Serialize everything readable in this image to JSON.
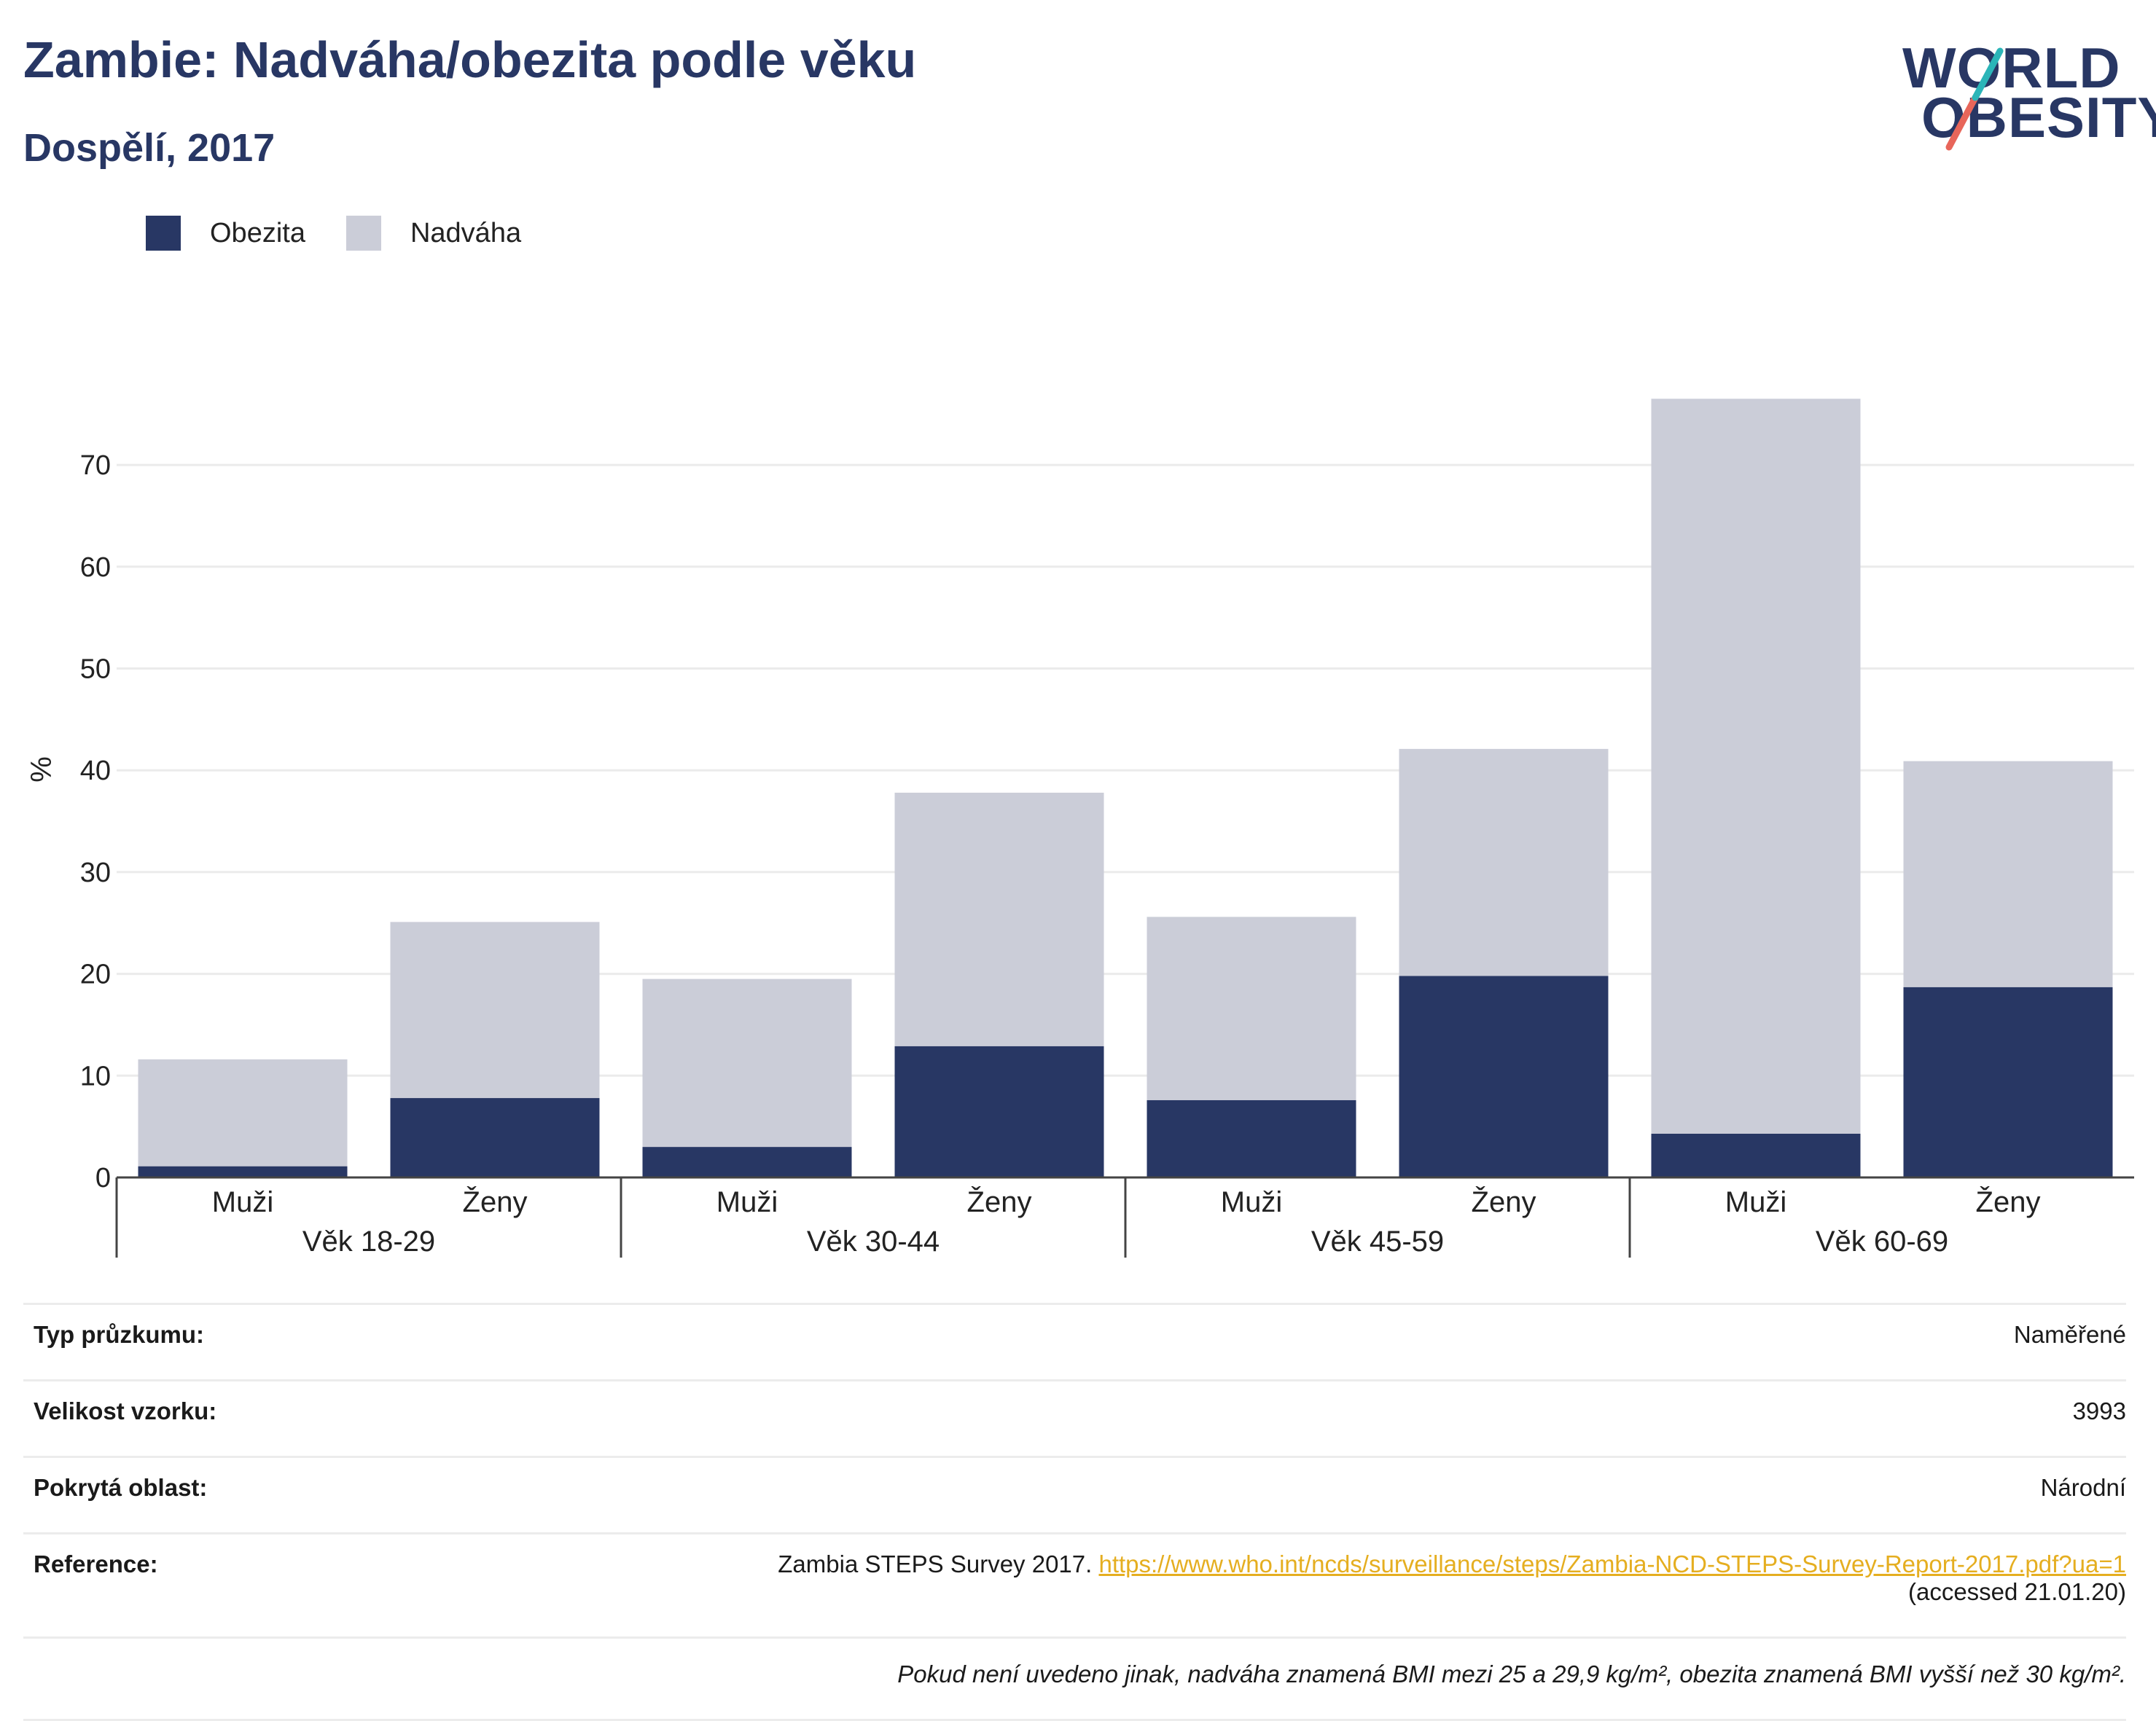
{
  "header": {
    "title": "Zambie: Nadváha/obezita podle věku",
    "subtitle": "Dospělí, 2017"
  },
  "logo": {
    "line1": "WORLD",
    "line2": "OBESITY",
    "accent_colors": [
      "#2bb5b8",
      "#e8665a"
    ]
  },
  "legend": {
    "items": [
      {
        "label": "Obezita",
        "color": "#283764"
      },
      {
        "label": "Nadváha",
        "color": "#cbcdd8"
      }
    ]
  },
  "chart_data": {
    "type": "bar",
    "stacked": true,
    "ylabel": "%",
    "ylim": [
      0,
      78
    ],
    "yticks": [
      0,
      10,
      20,
      30,
      40,
      50,
      60,
      70
    ],
    "grid": true,
    "legend_position": "top-left",
    "groups": [
      "Věk 18-29",
      "Věk 30-44",
      "Věk 45-59",
      "Věk 60-69"
    ],
    "categories": [
      "Muži",
      "Ženy",
      "Muži",
      "Ženy",
      "Muži",
      "Ženy",
      "Muži",
      "Ženy"
    ],
    "series": [
      {
        "name": "Obezita",
        "color": "#283764",
        "values": [
          1.1,
          7.8,
          3.0,
          12.9,
          7.6,
          19.8,
          4.3,
          18.7
        ]
      },
      {
        "name": "Nadváha",
        "color": "#cbcdd8",
        "values": [
          10.5,
          17.3,
          16.5,
          24.9,
          18.0,
          22.3,
          72.2,
          22.2
        ]
      }
    ]
  },
  "info": {
    "rows": [
      {
        "key": "Typ průzkumu:",
        "value": "Naměřené"
      },
      {
        "key": "Velikost vzorku:",
        "value": "3993"
      },
      {
        "key": "Pokrytá oblast:",
        "value": "Národní"
      }
    ],
    "reference": {
      "key": "Reference:",
      "text": "Zambia STEPS Survey 2017.",
      "link": "https://www.who.int/ncds/surveillance/steps/Zambia-NCD-STEPS-Survey-Report-2017.pdf?ua=1",
      "accessed": "(accessed 21.01.20)"
    },
    "note": "Pokud není uvedeno jinak, nadváha znamená BMI mezi 25 a 29,9 kg/m², obezita znamená BMI vyšší než 30 kg/m²."
  }
}
